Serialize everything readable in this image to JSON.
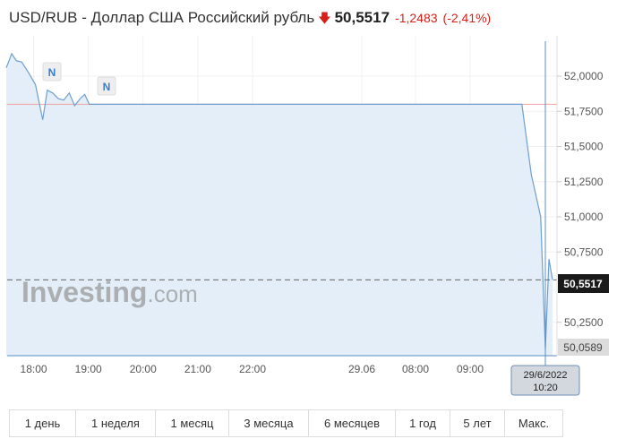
{
  "header": {
    "title": "USD/RUB - Доллар США Российский рубль",
    "arrow_icon": "arrow-down-icon",
    "price": "50,5517",
    "change": "-1,2483",
    "change_pct": "(-2,41%)",
    "down_color": "#d91e18"
  },
  "watermark": {
    "brand": "Investing",
    "suffix": ".com"
  },
  "news_markers": [
    "N",
    "N"
  ],
  "crosshair": {
    "date": "29/6/2022",
    "time": "10:20"
  },
  "current_label": "50,5517",
  "low_label": "50,0589",
  "range_tabs": [
    "1 день",
    "1 неделя",
    "1 месяц",
    "3 месяца",
    "6 месяцев",
    "1 год",
    "5 лет",
    "Макс."
  ],
  "chart_data": {
    "type": "area",
    "ylim": [
      50.0,
      52.2
    ],
    "y_ticks": [
      "52,0000",
      "51,7500",
      "51,5000",
      "51,2500",
      "51,0000",
      "50,7500",
      "50,2500"
    ],
    "y_tick_values": [
      52.0,
      51.75,
      51.5,
      51.25,
      51.0,
      50.75,
      50.25
    ],
    "x_ticks": [
      "18:00",
      "19:00",
      "20:00",
      "21:00",
      "22:00",
      "29.06",
      "08:00",
      "09:00"
    ],
    "x_tick_times": [
      "28.06 18:00",
      "28.06 19:00",
      "28.06 20:00",
      "28.06 21:00",
      "28.06 22:00",
      "29.06 00:00",
      "29.06 08:00",
      "29.06 09:00"
    ],
    "reference_line": 51.8,
    "current_value": 50.5517,
    "grid": true,
    "colors": {
      "line": "#6f9fd0",
      "fill": "#e3eef8",
      "reference": "#f2a0a0"
    },
    "points": [
      [
        "28.06 17:30",
        52.06
      ],
      [
        "28.06 17:36",
        52.16
      ],
      [
        "28.06 17:41",
        52.11
      ],
      [
        "28.06 17:47",
        52.1
      ],
      [
        "28.06 17:54",
        52.03
      ],
      [
        "28.06 18:02",
        51.94
      ],
      [
        "28.06 18:10",
        51.69
      ],
      [
        "28.06 18:15",
        51.9
      ],
      [
        "28.06 18:21",
        51.88
      ],
      [
        "28.06 18:27",
        51.84
      ],
      [
        "28.06 18:33",
        51.83
      ],
      [
        "28.06 18:39",
        51.88
      ],
      [
        "28.06 18:45",
        51.79
      ],
      [
        "28.06 18:51",
        51.84
      ],
      [
        "28.06 18:56",
        51.87
      ],
      [
        "28.06 19:01",
        51.8
      ],
      [
        "29.06 09:55",
        51.8
      ],
      [
        "29.06 10:05",
        51.3
      ],
      [
        "29.06 10:15",
        51.0
      ],
      [
        "29.06 10:20",
        50.0589
      ],
      [
        "29.06 10:25",
        50.7
      ],
      [
        "29.06 10:30",
        50.5517
      ]
    ]
  }
}
